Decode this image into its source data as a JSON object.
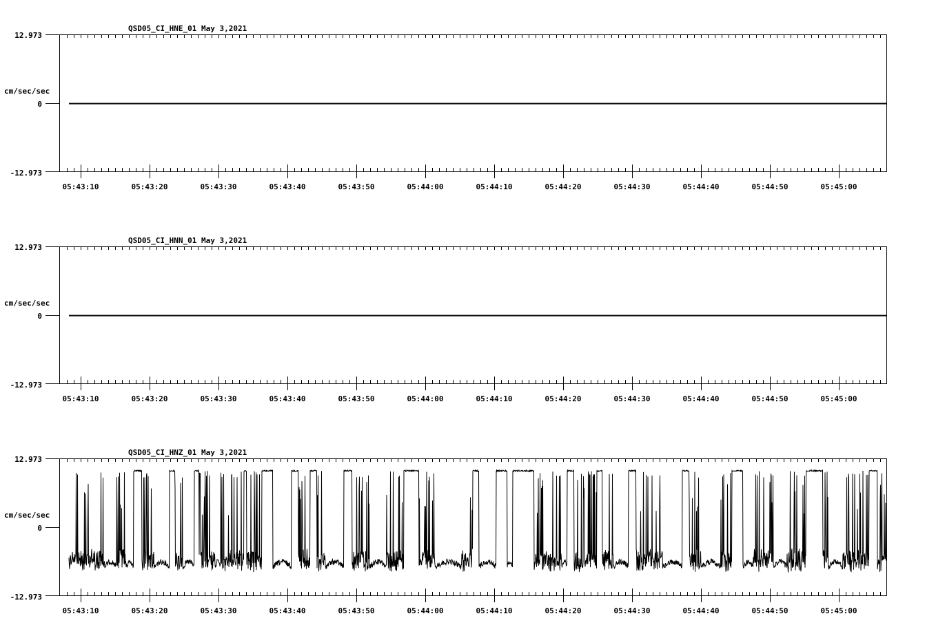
{
  "chart_data": [
    {
      "type": "line",
      "title": "QSD05_CI_HNE_01  May 3,2021",
      "station": "QSD05_CI_HNE_01",
      "date": "May 3,2021",
      "ylabel": "cm/sec/sec",
      "xlabel": "",
      "ylim": [
        -12.973,
        12.973
      ],
      "y_ticks": [
        "12.973",
        "0",
        "-12.973"
      ],
      "x_ticks": [
        "05:43:10",
        "05:43:20",
        "05:43:30",
        "05:43:40",
        "05:43:50",
        "05:44:00",
        "05:44:10",
        "05:44:20",
        "05:44:30",
        "05:44:40",
        "05:44:50",
        "05:45:00"
      ],
      "grid": false,
      "trace": "flat",
      "trace_value": 0
    },
    {
      "type": "line",
      "title": "QSD05_CI_HNN_01  May 3,2021",
      "station": "QSD05_CI_HNN_01",
      "date": "May 3,2021",
      "ylabel": "cm/sec/sec",
      "xlabel": "",
      "ylim": [
        -12.973,
        12.973
      ],
      "y_ticks": [
        "12.973",
        "0",
        "-12.973"
      ],
      "x_ticks": [
        "05:43:10",
        "05:43:20",
        "05:43:30",
        "05:43:40",
        "05:43:50",
        "05:44:00",
        "05:44:10",
        "05:44:20",
        "05:44:30",
        "05:44:40",
        "05:44:50",
        "05:45:00"
      ],
      "grid": false,
      "trace": "flat",
      "trace_value": 0
    },
    {
      "type": "line",
      "title": "QSD05_CI_HNZ_01  May 3,2021",
      "station": "QSD05_CI_HNZ_01",
      "date": "May 3,2021",
      "ylabel": "cm/sec/sec",
      "xlabel": "",
      "ylim": [
        -12.973,
        12.973
      ],
      "y_ticks": [
        "12.973",
        "0",
        "-12.973"
      ],
      "x_ticks": [
        "05:43:10",
        "05:43:20",
        "05:43:30",
        "05:43:40",
        "05:43:50",
        "05:44:00",
        "05:44:10",
        "05:44:20",
        "05:44:30",
        "05:44:40",
        "05:44:50",
        "05:45:00"
      ],
      "grid": false,
      "trace": "noisy-square",
      "high_level": 10.3,
      "low_level_range": [
        -6.5,
        -8.5
      ],
      "segments_seconds": [
        [
          0.0,
          "n"
        ],
        [
          2.4,
          "n"
        ],
        [
          5.2,
          "l"
        ],
        [
          6.9,
          "n"
        ],
        [
          8.3,
          "l"
        ],
        [
          9.4,
          "h"
        ],
        [
          10.6,
          "n"
        ],
        [
          12.4,
          "l"
        ],
        [
          14.6,
          "h"
        ],
        [
          15.4,
          "n"
        ],
        [
          16.6,
          "l"
        ],
        [
          18.2,
          "h"
        ],
        [
          18.9,
          "n"
        ],
        [
          21.2,
          "l"
        ],
        [
          22.0,
          "n"
        ],
        [
          25.4,
          "h"
        ],
        [
          25.8,
          "n"
        ],
        [
          28.0,
          "h"
        ],
        [
          29.6,
          "l"
        ],
        [
          32.3,
          "h"
        ],
        [
          33.3,
          "n"
        ],
        [
          35.0,
          "h"
        ],
        [
          36.0,
          "n"
        ],
        [
          37.2,
          "l"
        ],
        [
          39.9,
          "h"
        ],
        [
          41.1,
          "n"
        ],
        [
          43.6,
          "l"
        ],
        [
          46.1,
          "n"
        ],
        [
          48.6,
          "h"
        ],
        [
          50.8,
          "n"
        ],
        [
          53.1,
          "l"
        ],
        [
          57.0,
          "n"
        ],
        [
          58.6,
          "h"
        ],
        [
          59.5,
          "l"
        ],
        [
          62.0,
          "h"
        ],
        [
          63.6,
          "l"
        ],
        [
          64.4,
          "h"
        ],
        [
          67.5,
          "n"
        ],
        [
          71.5,
          "l"
        ],
        [
          72.3,
          "h"
        ],
        [
          73.3,
          "n"
        ],
        [
          76.6,
          "h"
        ],
        [
          77.4,
          "n"
        ],
        [
          79.0,
          "l"
        ],
        [
          81.2,
          "h"
        ],
        [
          82.3,
          "n"
        ],
        [
          86.3,
          "l"
        ],
        [
          89.0,
          "h"
        ],
        [
          90.0,
          "n"
        ],
        [
          91.7,
          "l"
        ],
        [
          94.6,
          "n"
        ],
        [
          96.2,
          "h"
        ],
        [
          97.8,
          "l"
        ],
        [
          99.3,
          "n"
        ],
        [
          102.2,
          "l"
        ],
        [
          104.2,
          "n"
        ],
        [
          107.0,
          "h"
        ],
        [
          109.4,
          "n"
        ],
        [
          110.2,
          "l"
        ],
        [
          112.3,
          "n"
        ],
        [
          116.1,
          "h"
        ],
        [
          117.3,
          "l"
        ],
        [
          117.6,
          "n"
        ]
      ]
    }
  ],
  "panels": [
    {
      "title": "QSD05_CI_HNE_01  May 3,2021",
      "ylabel": "cm/sec/sec",
      "ymax": "12.973",
      "yzero": "0",
      "ymin": "-12.973"
    },
    {
      "title": "QSD05_CI_HNN_01  May 3,2021",
      "ylabel": "cm/sec/sec",
      "ymax": "12.973",
      "yzero": "0",
      "ymin": "-12.973"
    },
    {
      "title": "QSD05_CI_HNZ_01  May 3,2021",
      "ylabel": "cm/sec/sec",
      "ymax": "12.973",
      "yzero": "0",
      "ymin": "-12.973"
    }
  ],
  "colors": {
    "background": "#ffffff",
    "axes": "#000000",
    "trace": "#000000"
  }
}
